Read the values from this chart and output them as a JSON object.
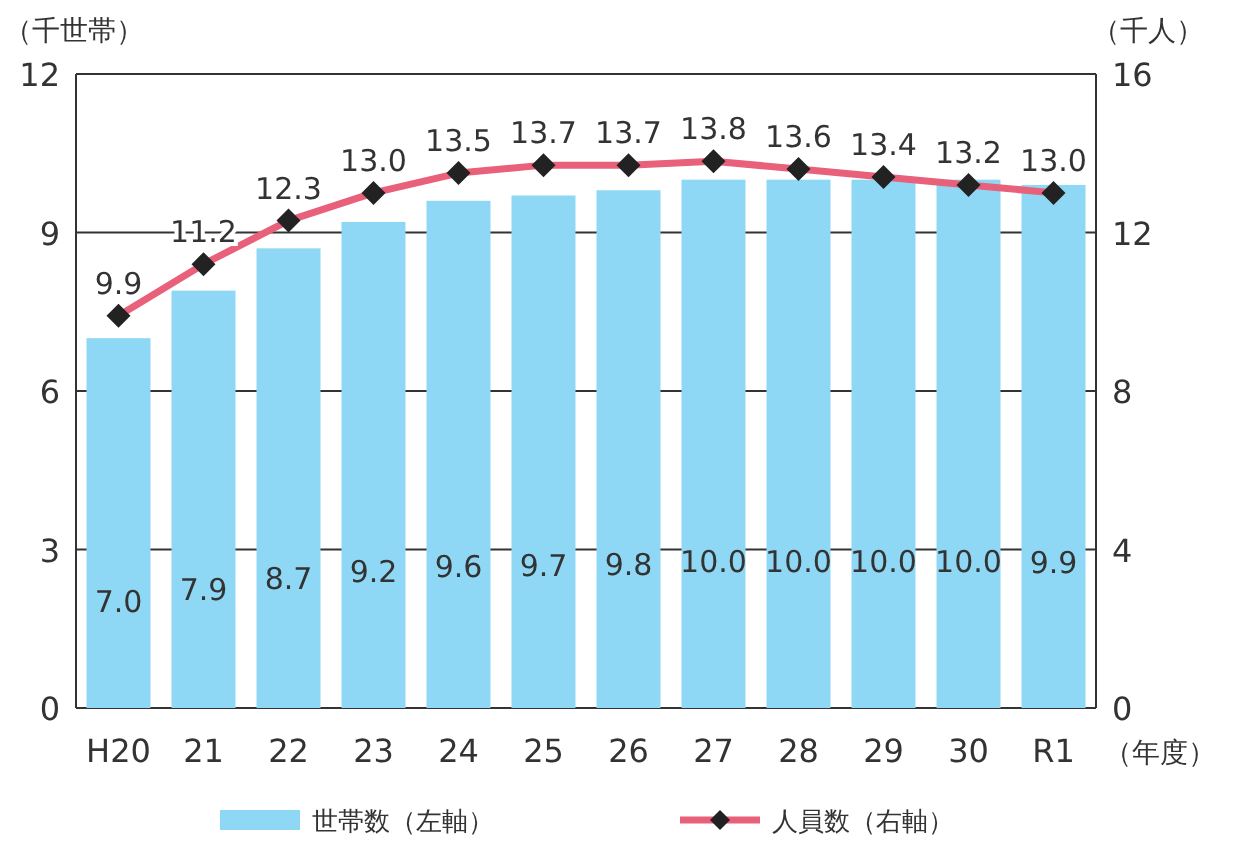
{
  "chart_data": {
    "type": "bar",
    "categories": [
      "H20",
      "21",
      "22",
      "23",
      "24",
      "25",
      "26",
      "27",
      "28",
      "29",
      "30",
      "R1"
    ],
    "xlabel": "（年度）",
    "ylabel": "（千世帯）",
    "y2label": "（千人）",
    "ylim": [
      0,
      12
    ],
    "yticks": [
      0,
      3,
      6,
      9,
      12
    ],
    "y2lim": [
      0,
      16
    ],
    "y2ticks": [
      0,
      4,
      8,
      12,
      16
    ],
    "grid": "y",
    "legend": "bottom",
    "series": [
      {
        "name": "世帯数（左軸）",
        "color": "#8fd8f5",
        "values": [
          7.0,
          7.9,
          8.7,
          9.2,
          9.6,
          9.7,
          9.8,
          10.0,
          10.0,
          10.0,
          10.0,
          9.9
        ],
        "value_labels": [
          "7.0",
          "7.9",
          "8.7",
          "9.2",
          "9.6",
          "9.7",
          "9.8",
          "10.0",
          "10.0",
          "10.0",
          "10.0",
          "9.9"
        ]
      },
      {
        "name": "人員数（右軸）",
        "type": "line",
        "axis": "y2",
        "color": "#e8607a",
        "marker": "diamond",
        "values": [
          9.9,
          11.2,
          12.3,
          13.0,
          13.5,
          13.7,
          13.7,
          13.8,
          13.6,
          13.4,
          13.2,
          13.0
        ],
        "value_labels": [
          "9.9",
          "11.2",
          "12.3",
          "13.0",
          "13.5",
          "13.7",
          "13.7",
          "13.8",
          "13.6",
          "13.4",
          "13.2",
          "13.0"
        ]
      }
    ]
  }
}
